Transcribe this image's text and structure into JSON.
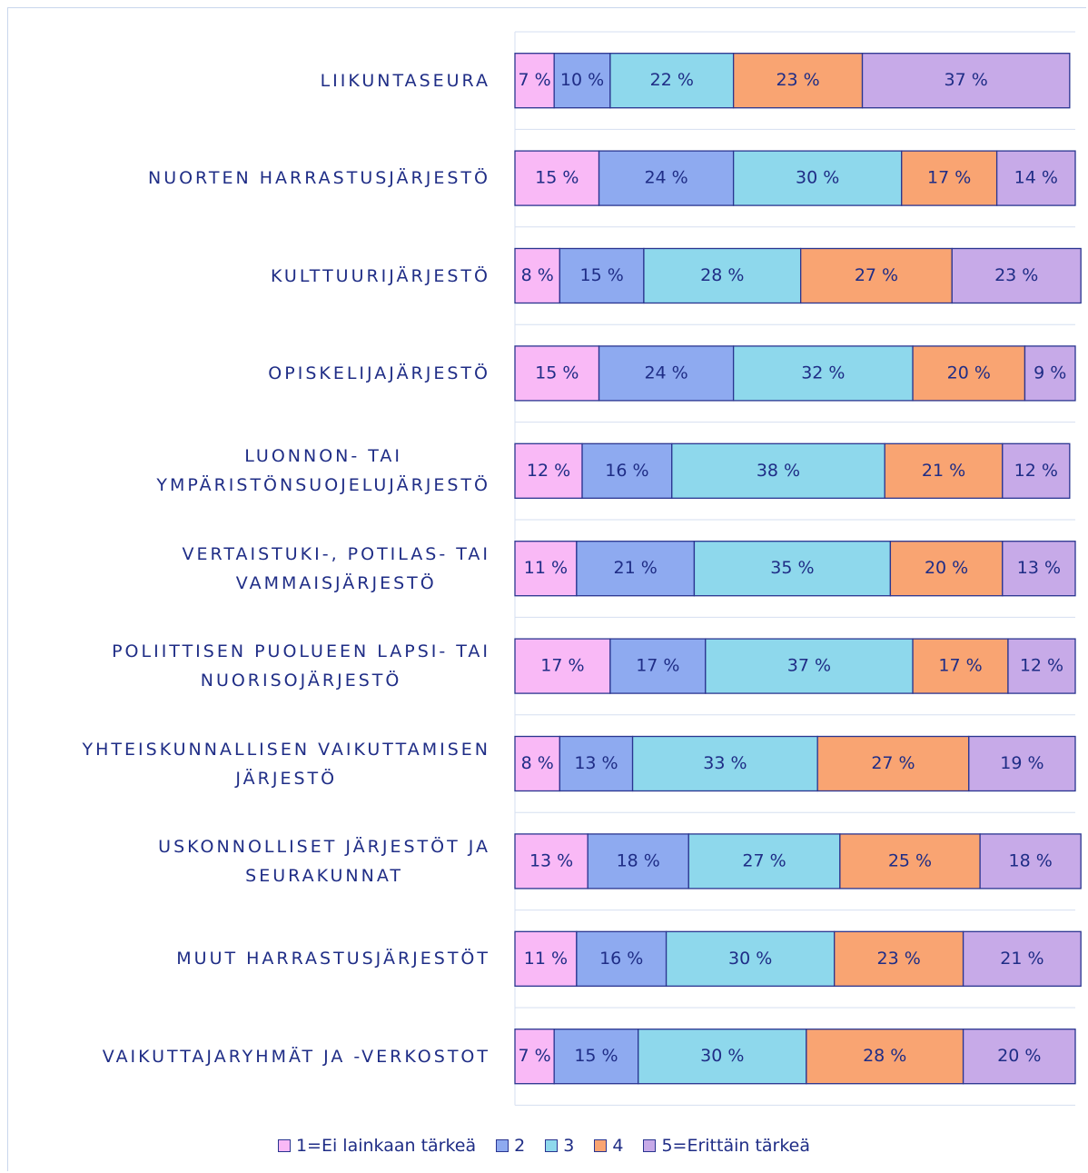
{
  "chart_data": {
    "type": "stacked-bar-horizontal",
    "categories": [
      "LIIKUNTASEURA",
      "NUORTEN HARRASTUSJÄRJESTÖ",
      "KULTTUURIJÄRJESTÖ",
      "OPISKELIJAJÄRJESTÖ",
      "LUONNON- TAI\nYMPÄRISTÖNSUOJELUJÄRJESTÖ",
      "VERTAISTUKI-, POTILAS- TAI\nVAMMAISJÄRJESTÖ",
      "POLIITTISEN PUOLUEEN LAPSI- TAI\nNUORISOJÄRJESTÖ",
      "YHTEISKUNNALLISEN VAIKUTTAMISEN\nJÄRJESTÖ",
      "USKONNOLLISET JÄRJESTÖT JA\nSEURAKUNNAT",
      "MUUT HARRASTUSJÄRJESTÖT",
      "VAIKUTTAJARYHMÄT JA -VERKOSTOT"
    ],
    "xlim": [
      0,
      100
    ],
    "series": [
      {
        "name": "1=Ei lainkaan tärkeä",
        "color": "#f9b9f6",
        "values": [
          7,
          15,
          8,
          15,
          12,
          11,
          17,
          8,
          13,
          11,
          7
        ],
        "value_labels": [
          "7 %",
          "15 %",
          "8 %",
          "15 %",
          "12 %",
          "11 %",
          "17 %",
          "8 %",
          "13 %",
          "11 %",
          "7 %"
        ]
      },
      {
        "name": "2",
        "color": "#8eaaf0",
        "values": [
          10,
          24,
          15,
          24,
          16,
          21,
          17,
          13,
          18,
          16,
          15
        ],
        "value_labels": [
          "10 %",
          "24 %",
          "15 %",
          "24 %",
          "16 %",
          "21 %",
          "17 %",
          "13 %",
          "18 %",
          "16 %",
          "15 %"
        ]
      },
      {
        "name": "3",
        "color": "#8ed8ec",
        "values": [
          22,
          30,
          28,
          32,
          38,
          35,
          37,
          33,
          27,
          30,
          30
        ],
        "value_labels": [
          "22 %",
          "30 %",
          "28 %",
          "32 %",
          "38 %",
          "35 %",
          "37 %",
          "33 %",
          "27 %",
          "30 %",
          "30 %"
        ]
      },
      {
        "name": "4",
        "color": "#f9a472",
        "values": [
          23,
          17,
          27,
          20,
          21,
          20,
          17,
          27,
          25,
          23,
          28
        ],
        "value_labels": [
          "23 %",
          "17 %",
          "27 %",
          "20 %",
          "21 %",
          "20 %",
          "17 %",
          "27 %",
          "25 %",
          "23 %",
          "28 %"
        ]
      },
      {
        "name": "5=Erittäin tärkeä",
        "color": "#c7aae8",
        "values": [
          37,
          14,
          23,
          9,
          12,
          13,
          12,
          19,
          18,
          21,
          20
        ],
        "value_labels": [
          "37 %",
          "14 %",
          "23 %",
          "9 %",
          "12 %",
          "13 %",
          "12 %",
          "19 %",
          "18 %",
          "21 %",
          "20 %"
        ]
      }
    ]
  }
}
